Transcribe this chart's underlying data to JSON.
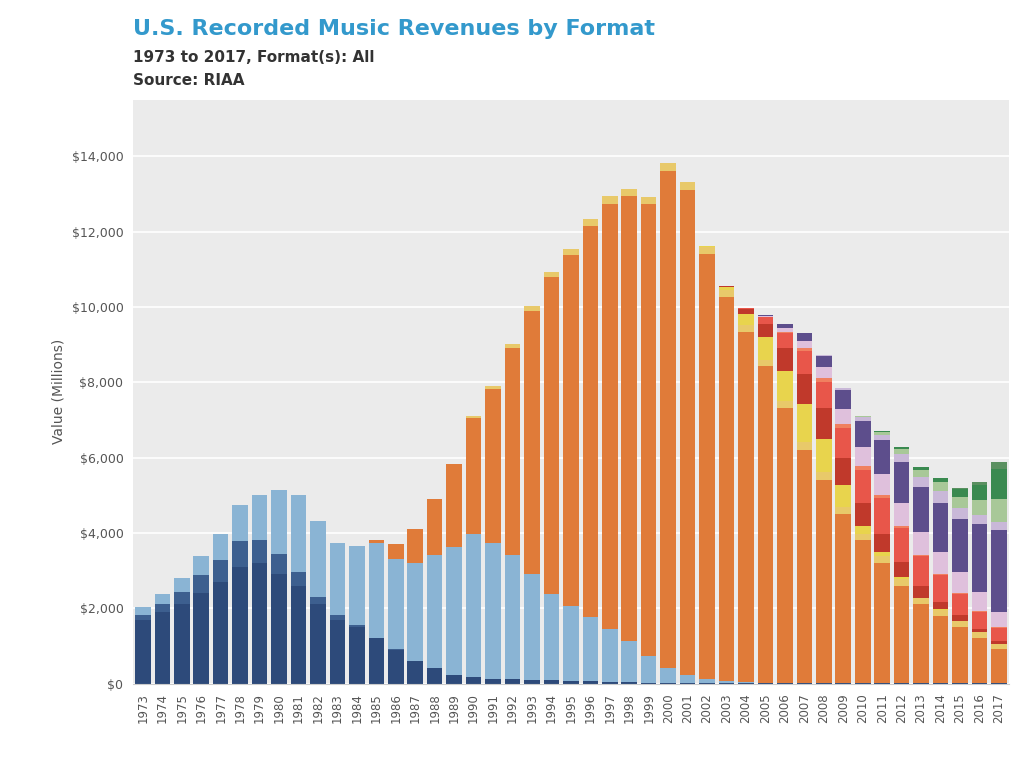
{
  "title": "U.S. Recorded Music Revenues by Format",
  "subtitle": "1973 to 2017, Format(s): All",
  "source": "Source: RIAA",
  "years": [
    1973,
    1974,
    1975,
    1976,
    1977,
    1978,
    1979,
    1980,
    1981,
    1982,
    1983,
    1984,
    1985,
    1986,
    1987,
    1988,
    1989,
    1990,
    1991,
    1992,
    1993,
    1994,
    1995,
    1996,
    1997,
    1998,
    1999,
    2000,
    2001,
    2002,
    2003,
    2004,
    2005,
    2006,
    2007,
    2008,
    2009,
    2010,
    2011,
    2012,
    2013,
    2014,
    2015,
    2016,
    2017
  ],
  "formats": {
    "Vinyl": {
      "color": "#2d4a7a",
      "values": [
        1700,
        1900,
        2100,
        2400,
        2700,
        3100,
        3200,
        2900,
        2600,
        2100,
        1700,
        1500,
        1200,
        900,
        600,
        400,
        220,
        160,
        130,
        110,
        100,
        85,
        70,
        55,
        40,
        35,
        25,
        20,
        15,
        12,
        10,
        8,
        6,
        5,
        4,
        3,
        3,
        2,
        2,
        2,
        2,
        2,
        3,
        5,
        8
      ]
    },
    "8-Track": {
      "color": "#3d5f8f",
      "values": [
        120,
        200,
        330,
        480,
        580,
        690,
        600,
        530,
        350,
        210,
        120,
        50,
        20,
        10,
        5,
        2,
        1,
        0,
        0,
        0,
        0,
        0,
        0,
        0,
        0,
        0,
        0,
        0,
        0,
        0,
        0,
        0,
        0,
        0,
        0,
        0,
        0,
        0,
        0,
        0,
        0,
        0,
        0,
        0,
        0
      ]
    },
    "Cassette": {
      "color": "#8ab4d4",
      "values": [
        200,
        280,
        360,
        500,
        700,
        950,
        1200,
        1700,
        2050,
        2000,
        1900,
        2100,
        2500,
        2400,
        2600,
        3000,
        3400,
        3800,
        3600,
        3300,
        2800,
        2300,
        2000,
        1700,
        1400,
        1100,
        700,
        400,
        200,
        100,
        50,
        25,
        15,
        5,
        2,
        1,
        0,
        0,
        0,
        0,
        0,
        0,
        0,
        0,
        0
      ]
    },
    "CD": {
      "color": "#e07b39",
      "values": [
        0,
        0,
        0,
        0,
        0,
        0,
        0,
        0,
        0,
        0,
        0,
        10,
        100,
        400,
        900,
        1500,
        2200,
        3100,
        4100,
        5500,
        7000,
        8400,
        9300,
        10400,
        11300,
        11800,
        12000,
        13200,
        12900,
        11300,
        10200,
        9300,
        8400,
        7300,
        6200,
        5400,
        4500,
        3800,
        3200,
        2600,
        2100,
        1800,
        1500,
        1200,
        900
      ]
    },
    "Synchronization": {
      "color": "#e8c96a",
      "values": [
        0,
        0,
        0,
        0,
        0,
        0,
        0,
        0,
        0,
        0,
        0,
        0,
        0,
        0,
        0,
        0,
        0,
        50,
        80,
        100,
        120,
        140,
        160,
        180,
        200,
        200,
        200,
        200,
        190,
        180,
        180,
        180,
        180,
        200,
        220,
        200,
        180,
        180,
        180,
        170,
        160,
        160,
        150,
        150,
        140
      ]
    },
    "Ringtones_Ringbacks": {
      "color": "#e8d44d",
      "values": [
        0,
        0,
        0,
        0,
        0,
        0,
        0,
        0,
        0,
        0,
        0,
        0,
        0,
        0,
        0,
        0,
        0,
        0,
        0,
        0,
        0,
        0,
        0,
        0,
        0,
        0,
        0,
        0,
        0,
        30,
        100,
        300,
        600,
        800,
        1000,
        900,
        600,
        200,
        100,
        50,
        20,
        10,
        5,
        3,
        2
      ]
    },
    "Download_Single": {
      "color": "#c0392b",
      "values": [
        0,
        0,
        0,
        0,
        0,
        0,
        0,
        0,
        0,
        0,
        0,
        0,
        0,
        0,
        0,
        0,
        0,
        0,
        0,
        0,
        0,
        0,
        0,
        0,
        0,
        0,
        0,
        0,
        0,
        0,
        10,
        120,
        350,
        600,
        800,
        800,
        700,
        600,
        500,
        400,
        300,
        200,
        150,
        100,
        80
      ]
    },
    "Download_Album": {
      "color": "#e8564a",
      "values": [
        0,
        0,
        0,
        0,
        0,
        0,
        0,
        0,
        0,
        0,
        0,
        0,
        0,
        0,
        0,
        0,
        0,
        0,
        0,
        0,
        0,
        0,
        0,
        0,
        0,
        0,
        0,
        0,
        0,
        0,
        0,
        50,
        180,
        400,
        600,
        700,
        800,
        900,
        950,
        900,
        800,
        700,
        580,
        450,
        350
      ]
    },
    "Download_Other": {
      "color": "#f08060",
      "values": [
        0,
        0,
        0,
        0,
        0,
        0,
        0,
        0,
        0,
        0,
        0,
        0,
        0,
        0,
        0,
        0,
        0,
        0,
        0,
        0,
        0,
        0,
        0,
        0,
        0,
        0,
        0,
        0,
        0,
        0,
        0,
        0,
        0,
        30,
        80,
        100,
        120,
        100,
        80,
        60,
        40,
        30,
        20,
        15,
        10
      ]
    },
    "SoundExchange_Distributions": {
      "color": "#dfc0dc",
      "values": [
        0,
        0,
        0,
        0,
        0,
        0,
        0,
        0,
        0,
        0,
        0,
        0,
        0,
        0,
        0,
        0,
        0,
        0,
        0,
        0,
        0,
        0,
        0,
        0,
        0,
        0,
        0,
        0,
        0,
        0,
        0,
        0,
        30,
        100,
        200,
        300,
        400,
        500,
        550,
        600,
        600,
        600,
        550,
        500,
        400
      ]
    },
    "Paid_Subscription": {
      "color": "#5d4e8c",
      "values": [
        0,
        0,
        0,
        0,
        0,
        0,
        0,
        0,
        0,
        0,
        0,
        0,
        0,
        0,
        0,
        0,
        0,
        0,
        0,
        0,
        0,
        0,
        0,
        0,
        0,
        0,
        0,
        0,
        0,
        0,
        0,
        0,
        30,
        100,
        200,
        300,
        500,
        700,
        900,
        1100,
        1200,
        1300,
        1400,
        1800,
        2200
      ]
    },
    "On_Demand_Streaming": {
      "color": "#c9b8d8",
      "values": [
        0,
        0,
        0,
        0,
        0,
        0,
        0,
        0,
        0,
        0,
        0,
        0,
        0,
        0,
        0,
        0,
        0,
        0,
        0,
        0,
        0,
        0,
        0,
        0,
        0,
        0,
        0,
        0,
        0,
        0,
        0,
        0,
        0,
        0,
        0,
        10,
        50,
        100,
        150,
        200,
        250,
        300,
        300,
        250,
        200
      ]
    },
    "Limited_Tier_Streaming": {
      "color": "#a8c898",
      "values": [
        0,
        0,
        0,
        0,
        0,
        0,
        0,
        0,
        0,
        0,
        0,
        0,
        0,
        0,
        0,
        0,
        0,
        0,
        0,
        0,
        0,
        0,
        0,
        0,
        0,
        0,
        0,
        0,
        0,
        0,
        0,
        0,
        0,
        0,
        0,
        0,
        0,
        30,
        80,
        150,
        200,
        250,
        300,
        400,
        600
      ]
    },
    "Other_Streaming": {
      "color": "#3a8a50",
      "values": [
        0,
        0,
        0,
        0,
        0,
        0,
        0,
        0,
        0,
        0,
        0,
        0,
        0,
        0,
        0,
        0,
        0,
        0,
        0,
        0,
        0,
        0,
        0,
        0,
        0,
        0,
        0,
        0,
        0,
        0,
        0,
        0,
        0,
        0,
        0,
        0,
        0,
        0,
        20,
        50,
        80,
        100,
        200,
        400,
        800
      ]
    },
    "Music_Video": {
      "color": "#5a9060",
      "values": [
        0,
        0,
        0,
        0,
        0,
        0,
        0,
        0,
        0,
        0,
        0,
        0,
        0,
        0,
        0,
        0,
        0,
        0,
        0,
        0,
        0,
        0,
        0,
        0,
        0,
        0,
        0,
        0,
        0,
        0,
        0,
        0,
        0,
        0,
        0,
        0,
        0,
        0,
        0,
        0,
        0,
        0,
        30,
        80,
        200
      ]
    }
  },
  "ylabel": "Value (Millions)",
  "ylim": [
    0,
    15500
  ],
  "yticks": [
    0,
    2000,
    4000,
    6000,
    8000,
    10000,
    12000,
    14000
  ],
  "ytick_labels": [
    "$0",
    "$2,000",
    "$4,000",
    "$6,000",
    "$8,000",
    "$10,000",
    "$12,000",
    "$14,000"
  ],
  "plot_bg": "#ebebeb",
  "title_color": "#3399cc",
  "subtitle_color": "#333333"
}
